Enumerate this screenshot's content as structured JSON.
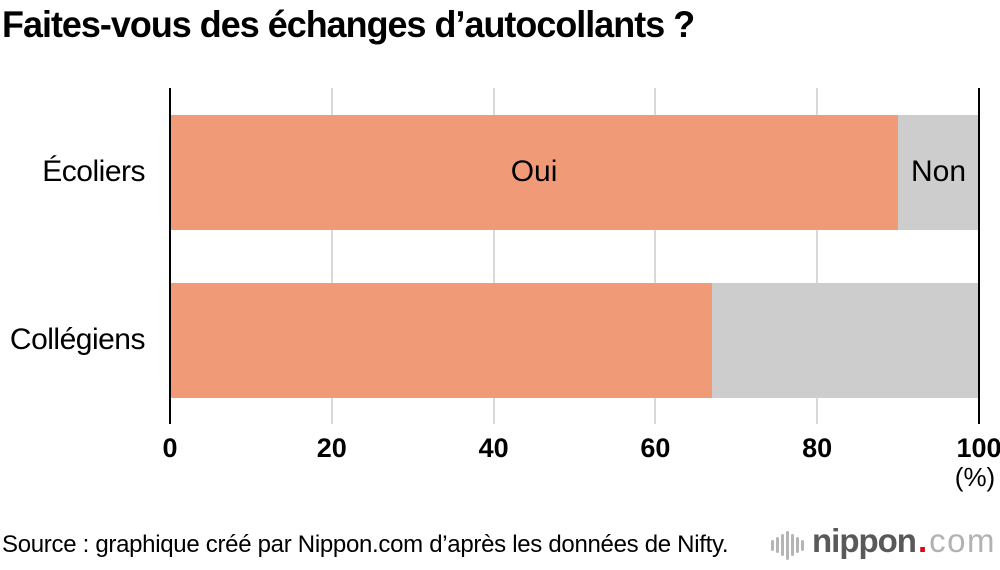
{
  "title": "Faites-vous des échanges d’autocollants ?",
  "chart_data": {
    "type": "bar",
    "orientation": "horizontal",
    "stacked": true,
    "title": "Faites-vous des échanges d’autocollants ?",
    "categories": [
      "Écoliers",
      "Collégiens"
    ],
    "series": [
      {
        "name": "Oui",
        "color": "#f09a78",
        "values": [
          90,
          67
        ]
      },
      {
        "name": "Non",
        "color": "#cdcdcd",
        "values": [
          10,
          33
        ]
      }
    ],
    "xlim": [
      0,
      100
    ],
    "xticks": [
      0,
      20,
      40,
      60,
      80,
      100
    ],
    "unit_label": "(%)",
    "segment_labels_row": 0,
    "grid": true,
    "legend": "labels-inside-first-bar"
  },
  "source": "Source : graphique créé par Nippon.com d’après les données de Nifty.",
  "logo": {
    "icon": "soundwave-icon",
    "name": "nippon",
    "dot": ".",
    "tld": "com"
  },
  "colors": {
    "background": "#ffffff",
    "text": "#000000",
    "axis": "#000000",
    "grid": "#d9d9d9",
    "oui": "#f09a78",
    "non": "#cdcdcd",
    "logo_dark": "#595959",
    "logo_light": "#b2b2b2",
    "logo_red": "#e60012",
    "logo_waves": "#b5b5b5"
  }
}
